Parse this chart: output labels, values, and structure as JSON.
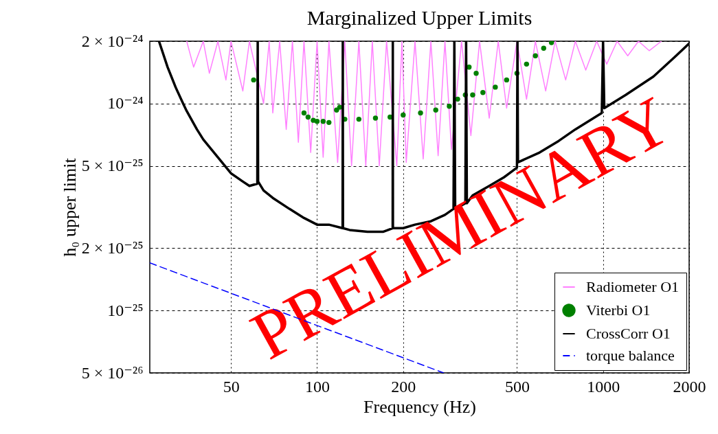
{
  "chart_data": {
    "type": "line",
    "title": "Marginalized Upper Limits",
    "xlabel": "Frequency (Hz)",
    "ylabel": "h₀ upper limit",
    "log": "xy",
    "grid": true,
    "legend": "bottom right",
    "xlim": [
      26,
      2000
    ],
    "xticks": [
      50,
      100,
      200,
      500,
      1000,
      2000
    ],
    "ylim": [
      5e-26,
      2e-24
    ],
    "yticks": [
      {
        "value": 5e-26,
        "label": "5 × 10⁻²⁶"
      },
      {
        "value": 1e-25,
        "label": "10⁻²⁵"
      },
      {
        "value": 2e-25,
        "label": "2 × 10⁻²⁵"
      },
      {
        "value": 5e-25,
        "label": "5 × 10⁻²⁵"
      },
      {
        "value": 1e-24,
        "label": "10⁻²⁴"
      },
      {
        "value": 2e-24,
        "label": "2 × 10⁻²⁴"
      }
    ],
    "annotations": [
      "PRELIMINARY"
    ],
    "series": [
      {
        "name": "Radiometer O1",
        "type": "line",
        "color": "#ff80ff",
        "line_style": "solid",
        "x": [
          35,
          37,
          40,
          42,
          45,
          48,
          50,
          55,
          58,
          65,
          68,
          70,
          74,
          78,
          82,
          86,
          90,
          95,
          100,
          105,
          110,
          118,
          125,
          132,
          140,
          148,
          156,
          165,
          175,
          190,
          198,
          205,
          220,
          235,
          250,
          265,
          280,
          295,
          320,
          345,
          370,
          400,
          430,
          460,
          500,
          540,
          580,
          630,
          680,
          740,
          800,
          870,
          950,
          1030,
          1120,
          1220,
          1330,
          1450,
          1600
        ],
        "values": [
          2e-24,
          1.5e-24,
          2e-24,
          1.4e-24,
          2e-24,
          1.3e-24,
          2e-24,
          1.15e-24,
          2e-24,
          1e-24,
          2e-24,
          9e-25,
          2e-24,
          7.5e-25,
          2e-24,
          6.5e-25,
          2e-24,
          5.8e-25,
          2e-24,
          5.5e-25,
          2e-24,
          5.2e-25,
          2e-24,
          5e-25,
          2e-24,
          5e-25,
          2e-24,
          5e-25,
          2e-24,
          5e-25,
          2e-24,
          5.2e-25,
          2e-24,
          5.4e-25,
          2e-24,
          5.6e-25,
          2e-24,
          6e-25,
          2e-24,
          7e-25,
          2e-24,
          8.5e-25,
          2e-24,
          9.5e-25,
          2e-24,
          1.05e-24,
          2e-24,
          1.15e-24,
          2e-24,
          1.3e-24,
          2e-24,
          1.45e-24,
          2e-24,
          1.55e-24,
          2e-24,
          1.7e-24,
          2e-24,
          1.8e-24,
          2e-24
        ]
      },
      {
        "name": "Viterbi O1",
        "type": "scatter",
        "color": "#008000",
        "marker": "circle",
        "x": [
          60,
          90,
          93,
          97,
          100,
          105,
          110,
          117,
          120,
          125,
          140,
          160,
          180,
          200,
          230,
          260,
          290,
          310,
          330,
          340,
          350,
          360,
          380,
          420,
          460,
          500,
          540,
          580,
          620,
          660
        ],
        "values": [
          1.3e-24,
          9e-25,
          8.6e-25,
          8.3e-25,
          8.2e-25,
          8.2e-25,
          8.1e-25,
          9.3e-25,
          9.6e-25,
          8.4e-25,
          8.4e-25,
          8.5e-25,
          8.6e-25,
          8.8e-25,
          9e-25,
          9.3e-25,
          9.7e-25,
          1.05e-24,
          1.1e-24,
          1.5e-24,
          1.1e-24,
          1.4e-24,
          1.13e-24,
          1.2e-24,
          1.3e-24,
          1.4e-24,
          1.55e-24,
          1.7e-24,
          1.85e-24,
          1.97e-24
        ]
      },
      {
        "name": "CrossCorr O1",
        "type": "line",
        "color": "#000000",
        "line_style": "solid",
        "x": [
          28,
          30,
          32,
          34,
          35,
          38,
          40,
          45,
          50,
          55,
          58,
          61.8,
          62,
          62.2,
          65,
          70,
          80,
          90,
          100,
          110,
          122.8,
          123,
          123.2,
          130,
          150,
          170,
          183.8,
          184,
          184.2,
          200,
          220,
          250,
          280,
          300,
          302,
          304,
          330,
          332,
          334,
          350,
          400,
          450,
          500,
          502,
          504,
          600,
          700,
          800,
          900,
          990,
          1000,
          1010,
          1200,
          1500,
          1800,
          2000
        ],
        "values": [
          2e-24,
          1.5e-24,
          1.2e-24,
          1e-24,
          9.2e-25,
          7.5e-25,
          6.7e-25,
          5.5e-25,
          4.6e-25,
          4.2e-25,
          4e-25,
          4.1e-25,
          2e-24,
          4.2e-25,
          3.8e-25,
          3.5e-25,
          3.1e-25,
          2.8e-25,
          2.6e-25,
          2.6e-25,
          2.5e-25,
          2e-24,
          2.5e-25,
          2.45e-25,
          2.4e-25,
          2.4e-25,
          2.5e-25,
          2e-24,
          2.5e-25,
          2.5e-25,
          2.6e-25,
          2.7e-25,
          2.9e-25,
          3.1e-25,
          2e-24,
          3.1e-25,
          3.3e-25,
          2e-24,
          3.3e-25,
          3.6e-25,
          4e-25,
          4.4e-25,
          4.9e-25,
          2e-24,
          5.2e-25,
          5.8e-25,
          6.6e-25,
          7.5e-25,
          8.3e-25,
          9e-25,
          2e-24,
          9.5e-25,
          1.1e-24,
          1.35e-24,
          1.7e-24,
          1.95e-24
        ]
      },
      {
        "name": "torque balance",
        "type": "line",
        "color": "#0000ff",
        "line_style": "dashed",
        "x": [
          26,
          277
        ],
        "values": [
          1.7e-25,
          5e-26
        ]
      }
    ]
  }
}
